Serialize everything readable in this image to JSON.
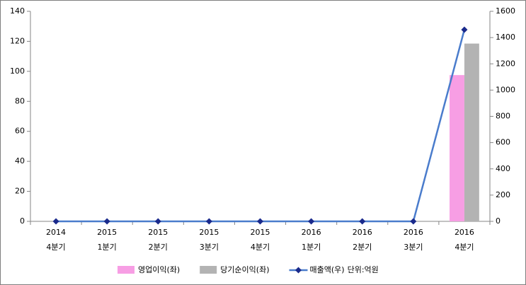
{
  "chart_data": {
    "type": "bar_line",
    "categories": [
      [
        "2014",
        "4분기"
      ],
      [
        "2015",
        "1분기"
      ],
      [
        "2015",
        "2분기"
      ],
      [
        "2015",
        "3분기"
      ],
      [
        "2015",
        "4분기"
      ],
      [
        "2016",
        "1분기"
      ],
      [
        "2016",
        "2분기"
      ],
      [
        "2016",
        "3분기"
      ],
      [
        "2016",
        "4분기"
      ]
    ],
    "series": [
      {
        "name": "영업이익(좌)",
        "type": "bar",
        "color": "#f79ee4",
        "values": [
          0,
          0,
          0,
          0,
          0,
          0,
          0,
          0,
          97.5
        ]
      },
      {
        "name": "당기순이익(좌)",
        "type": "bar",
        "color": "#b3b3b3",
        "values": [
          0,
          0,
          0,
          0,
          0,
          0,
          0,
          0,
          118.5
        ]
      },
      {
        "name": "매출액(우)",
        "type": "line",
        "axis": "y2",
        "color": "#4a7ccc",
        "marker_color": "#1a2a8c",
        "values": [
          0,
          0,
          0,
          0,
          0,
          0,
          0,
          0,
          1460
        ]
      }
    ],
    "annotation": "단위:억원",
    "ylim": [
      0,
      140
    ],
    "yticks": [
      0,
      20,
      40,
      60,
      80,
      100,
      120,
      140
    ],
    "y2lim": [
      0,
      1600
    ],
    "y2ticks": [
      0,
      200,
      400,
      600,
      800,
      1000,
      1200,
      1400,
      1600
    ],
    "legend": "bottom"
  }
}
